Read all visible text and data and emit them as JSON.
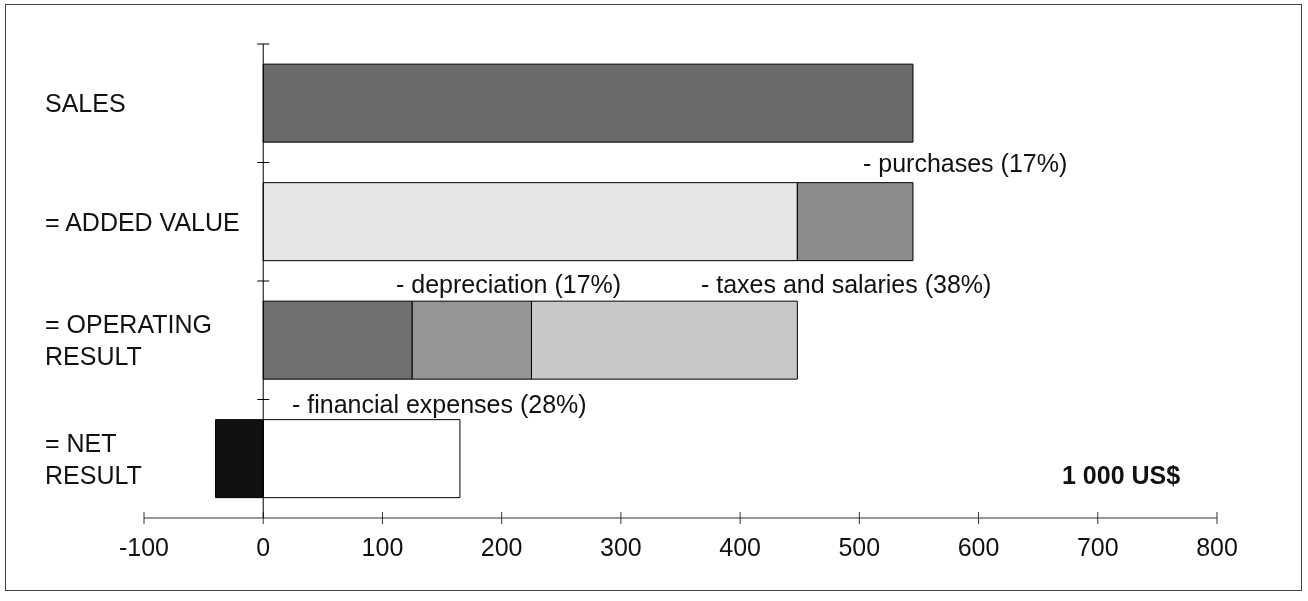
{
  "chart_data": {
    "type": "bar",
    "orientation": "horizontal",
    "stacked": true,
    "categories": [
      "SALES",
      "= ADDED VALUE",
      "= OPERATING RESULT",
      "= NET RESULT"
    ],
    "series": [
      {
        "values": [
          545,
          448,
          125,
          165
        ],
        "colors": [
          "#6b6b6b",
          "#e6e6e6",
          "#707070",
          "#ffffff"
        ]
      },
      {
        "values": [
          null,
          97,
          100,
          -40
        ],
        "colors": [
          null,
          "#8c8c8c",
          "#959595",
          "#111111"
        ]
      },
      {
        "values": [
          null,
          null,
          223,
          null
        ],
        "color": "#c8c8c8"
      }
    ],
    "xlim": [
      -100,
      800
    ],
    "xticks": [
      -100,
      0,
      100,
      200,
      300,
      400,
      500,
      600,
      700,
      800
    ],
    "annotations": [
      "- purchases (17%)",
      "- depreciation (17%)",
      "- taxes and salaries (38%)",
      "- financial expenses (28%)",
      "1 000 US$"
    ]
  }
}
